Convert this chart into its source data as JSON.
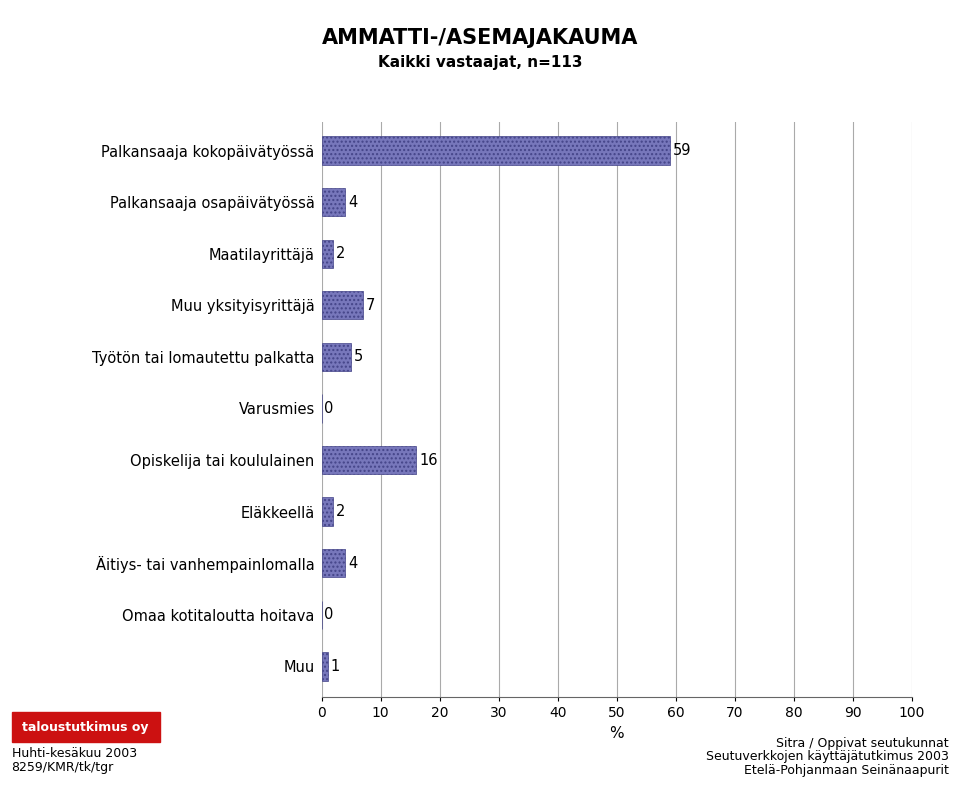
{
  "title": "AMMATTI-/ASEMAJAKAUMA",
  "subtitle": "Kaikki vastaajat, n=113",
  "categories": [
    "Palkansaaja kokopäivätyössä",
    "Palkansaaja osapäivätyössä",
    "Maatilayrittäjä",
    "Muu yksityisyrittäjä",
    "Työtön tai lomautettu palkatta",
    "Varusmies",
    "Opiskelija tai koululainen",
    "Eläkkeellä",
    "Äitiys- tai vanhempainlomalla",
    "Omaa kotitaloutta hoitava",
    "Muu"
  ],
  "values": [
    59,
    4,
    2,
    7,
    5,
    0,
    16,
    2,
    4,
    0,
    1
  ],
  "bar_color": "#7777bb",
  "bar_edgecolor": "#444488",
  "bar_hatch": "....",
  "xlim": [
    0,
    100
  ],
  "xticks": [
    0,
    10,
    20,
    30,
    40,
    50,
    60,
    70,
    80,
    90,
    100
  ],
  "xlabel": "%",
  "footer_left_line1": "taloustutkimus oy",
  "footer_left_line2": "Huhti-kesäkuu 2003",
  "footer_left_line3": "8259/KMR/tk/tgr",
  "footer_right_line1": "Sitra / Oppivat seutukunnat",
  "footer_right_line2": "Seutuverkkojen käyttäjätutkimus 2003",
  "footer_right_line3": "Etelä-Pohjanmaan Seinänaapurit",
  "bg_color": "#ffffff",
  "plot_bg_color": "#ffffff",
  "grid_color": "#aaaaaa",
  "title_fontsize": 15,
  "subtitle_fontsize": 11,
  "label_fontsize": 10.5,
  "value_fontsize": 10.5,
  "tick_fontsize": 10,
  "footer_fontsize": 9
}
